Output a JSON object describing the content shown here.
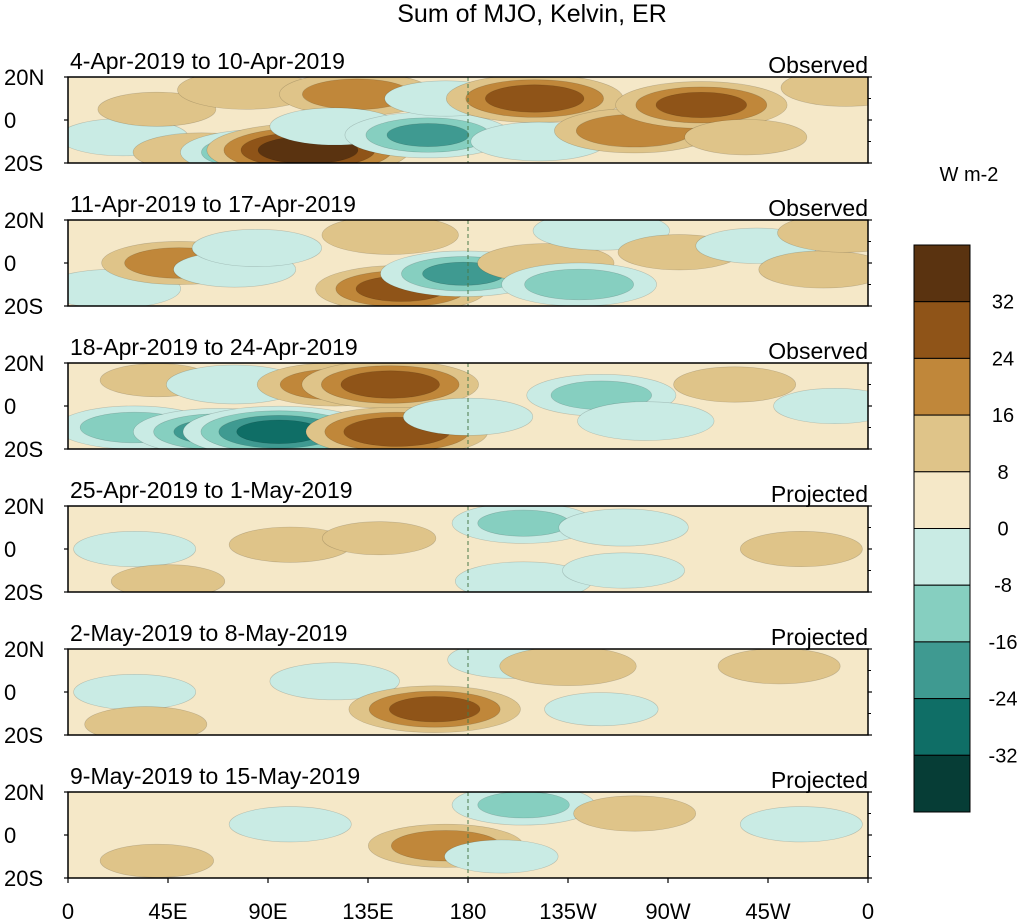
{
  "chart_data": {
    "type": "heatmap",
    "title": "Sum of MJO, Kelvin, ER",
    "units": "W m-2",
    "x_ticks": [
      "0",
      "45E",
      "90E",
      "135E",
      "180",
      "135W",
      "90W",
      "45W",
      "0"
    ],
    "y_ticks": [
      "20N",
      "0",
      "20S"
    ],
    "colorbar": {
      "levels": [
        "32",
        "24",
        "16",
        "8",
        "0",
        "-8",
        "-16",
        "-24",
        "-32"
      ],
      "colors": [
        "#5a3310",
        "#8f5418",
        "#c0873a",
        "#dfc489",
        "#f5e8c8",
        "#c9ebe4",
        "#86cfc0",
        "#3f9a91",
        "#0f6e66",
        "#063d36"
      ]
    },
    "panels": [
      {
        "period": "4-Apr-2019 to 10-Apr-2019",
        "status": "Observed",
        "anomalies": [
          {
            "lon": 25,
            "lat": -8,
            "value": -12
          },
          {
            "lon": 40,
            "lat": 5,
            "value": 9
          },
          {
            "lon": 60,
            "lat": -15,
            "value": 14
          },
          {
            "lon": 88,
            "lat": -15,
            "value": -24
          },
          {
            "lon": 80,
            "lat": 14,
            "value": 14
          },
          {
            "lon": 108,
            "lat": -14,
            "value": 38
          },
          {
            "lon": 130,
            "lat": 12,
            "value": 20
          },
          {
            "lon": 120,
            "lat": -3,
            "value": -12
          },
          {
            "lon": 162,
            "lat": -7,
            "value": -24
          },
          {
            "lon": 170,
            "lat": 10,
            "value": -10
          },
          {
            "lon": 210,
            "lat": 10,
            "value": 28
          },
          {
            "lon": 212,
            "lat": -10,
            "value": -14
          },
          {
            "lon": 255,
            "lat": -5,
            "value": 22
          },
          {
            "lon": 285,
            "lat": 7,
            "value": 26
          },
          {
            "lon": 305,
            "lat": -8,
            "value": 10
          },
          {
            "lon": 350,
            "lat": 15,
            "value": 12
          }
        ]
      },
      {
        "period": "11-Apr-2019 to 17-Apr-2019",
        "status": "Observed",
        "anomalies": [
          {
            "lon": 20,
            "lat": -12,
            "value": -14
          },
          {
            "lon": 50,
            "lat": 0,
            "value": 20
          },
          {
            "lon": 75,
            "lat": -3,
            "value": -10
          },
          {
            "lon": 85,
            "lat": 7,
            "value": -12
          },
          {
            "lon": 145,
            "lat": 13,
            "value": 14
          },
          {
            "lon": 150,
            "lat": -12,
            "value": 26
          },
          {
            "lon": 178,
            "lat": -5,
            "value": -24
          },
          {
            "lon": 215,
            "lat": 0,
            "value": 14
          },
          {
            "lon": 230,
            "lat": -10,
            "value": -20
          },
          {
            "lon": 240,
            "lat": 15,
            "value": -14
          },
          {
            "lon": 275,
            "lat": 5,
            "value": 10
          },
          {
            "lon": 310,
            "lat": 8,
            "value": -10
          },
          {
            "lon": 340,
            "lat": -3,
            "value": 12
          },
          {
            "lon": 350,
            "lat": 14,
            "value": 14
          }
        ]
      },
      {
        "period": "18-Apr-2019 to 24-Apr-2019",
        "status": "Observed",
        "anomalies": [
          {
            "lon": 30,
            "lat": -10,
            "value": -20
          },
          {
            "lon": 40,
            "lat": 12,
            "value": 8
          },
          {
            "lon": 68,
            "lat": -12,
            "value": -26
          },
          {
            "lon": 95,
            "lat": -12,
            "value": -34
          },
          {
            "lon": 75,
            "lat": 10,
            "value": -14
          },
          {
            "lon": 120,
            "lat": 10,
            "value": 20
          },
          {
            "lon": 145,
            "lat": 10,
            "value": 28
          },
          {
            "lon": 148,
            "lat": -12,
            "value": 30
          },
          {
            "lon": 180,
            "lat": -5,
            "value": -12
          },
          {
            "lon": 240,
            "lat": 5,
            "value": -18
          },
          {
            "lon": 260,
            "lat": -7,
            "value": -14
          },
          {
            "lon": 300,
            "lat": 10,
            "value": 10
          },
          {
            "lon": 345,
            "lat": 0,
            "value": -10
          }
        ]
      },
      {
        "period": "25-Apr-2019 to 1-May-2019",
        "status": "Projected",
        "anomalies": [
          {
            "lon": 30,
            "lat": 0,
            "value": -10
          },
          {
            "lon": 45,
            "lat": -15,
            "value": 8
          },
          {
            "lon": 100,
            "lat": 2,
            "value": 10
          },
          {
            "lon": 140,
            "lat": 5,
            "value": 8
          },
          {
            "lon": 205,
            "lat": 12,
            "value": -16
          },
          {
            "lon": 205,
            "lat": -15,
            "value": -14
          },
          {
            "lon": 250,
            "lat": 10,
            "value": -12
          },
          {
            "lon": 250,
            "lat": -10,
            "value": -10
          },
          {
            "lon": 330,
            "lat": 0,
            "value": 10
          }
        ]
      },
      {
        "period": "2-May-2019 to 8-May-2019",
        "status": "Projected",
        "anomalies": [
          {
            "lon": 30,
            "lat": 0,
            "value": -10
          },
          {
            "lon": 35,
            "lat": -15,
            "value": 10
          },
          {
            "lon": 120,
            "lat": 5,
            "value": -12
          },
          {
            "lon": 165,
            "lat": -8,
            "value": 26
          },
          {
            "lon": 200,
            "lat": 15,
            "value": -12
          },
          {
            "lon": 225,
            "lat": 12,
            "value": 14
          },
          {
            "lon": 240,
            "lat": -8,
            "value": -8
          },
          {
            "lon": 320,
            "lat": 12,
            "value": 10
          }
        ]
      },
      {
        "period": "9-May-2019 to 15-May-2019",
        "status": "Projected",
        "anomalies": [
          {
            "lon": 40,
            "lat": -12,
            "value": 8
          },
          {
            "lon": 100,
            "lat": 5,
            "value": -10
          },
          {
            "lon": 170,
            "lat": -5,
            "value": 20
          },
          {
            "lon": 205,
            "lat": 14,
            "value": -16
          },
          {
            "lon": 195,
            "lat": -10,
            "value": -8
          },
          {
            "lon": 255,
            "lat": 10,
            "value": 10
          },
          {
            "lon": 330,
            "lat": 5,
            "value": -10
          }
        ]
      }
    ]
  }
}
